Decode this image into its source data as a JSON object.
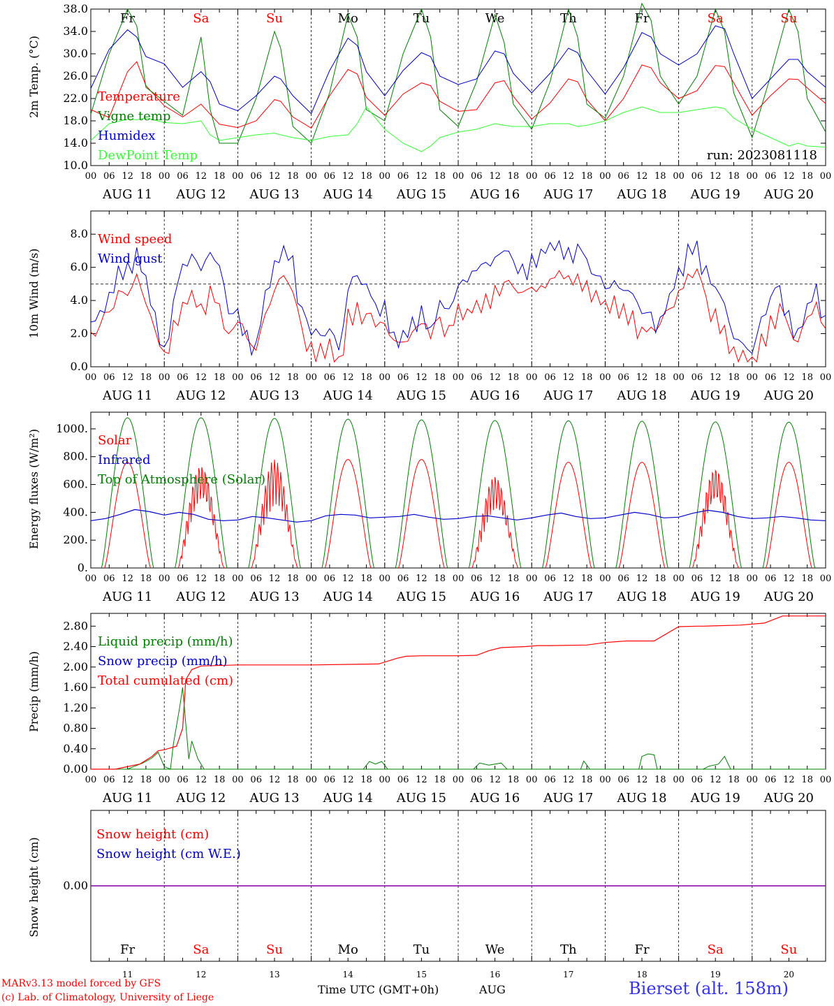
{
  "chart_data": {
    "type": "line",
    "run_label": "run: 2023081118",
    "day_labels": [
      "Fr",
      "Sa",
      "Su",
      "Mo",
      "Tu",
      "We",
      "Th",
      "Fr",
      "Sa",
      "Su"
    ],
    "weekend_days": [
      1,
      2,
      8,
      9
    ],
    "date_labels": [
      "AUG 11",
      "AUG 12",
      "AUG 13",
      "AUG 14",
      "AUG 15",
      "AUG 16",
      "AUG 17",
      "AUG 18",
      "AUG 19",
      "AUG 20"
    ],
    "day_numbers": [
      "11",
      "12",
      "13",
      "14",
      "15",
      "16",
      "17",
      "18",
      "19",
      "20"
    ],
    "hour_ticks": [
      "00",
      "06",
      "12",
      "18"
    ],
    "month_label": "AUG",
    "xlabel": "Time UTC (GMT+0h)",
    "footer_left": [
      "MARv3.13 model forced by GFS",
      "(c) Lab. of Climatology, University of Liege"
    ],
    "station": "Bierset (alt. 158m)",
    "panels": [
      {
        "id": "temperature",
        "ylabel": "2m Temp. (°C)",
        "ylim": [
          10,
          38
        ],
        "yticks": [
          "10.0",
          "14.0",
          "18.0",
          "22.0",
          "26.0",
          "30.0",
          "34.0",
          "38.0"
        ],
        "x_hours": [
          0,
          6,
          12,
          15,
          18,
          24,
          30,
          36,
          39,
          42,
          48,
          54,
          60,
          62,
          66,
          72,
          78,
          84,
          87,
          90,
          96,
          102,
          108,
          111,
          114,
          120,
          126,
          132,
          135,
          138,
          144,
          150,
          156,
          159,
          162,
          168,
          174,
          180,
          183,
          186,
          192,
          198,
          204,
          207,
          210,
          216,
          222,
          228,
          231,
          234,
          240
        ],
        "series": [
          {
            "name": "Temperature",
            "color": "#ff0000",
            "values": [
              20.0,
              18.6,
              26.8,
              28.6,
              24.3,
              20.7,
              18.7,
              21.0,
              19.2,
              17.4,
              16.8,
              18.0,
              21.8,
              21.5,
              18.7,
              16.7,
              22.5,
              27.2,
              26.4,
              22.2,
              19.0,
              22.8,
              24.8,
              24.3,
              21.5,
              19.7,
              20.0,
              24.8,
              25.2,
              22.4,
              18.3,
              21.2,
              25.5,
              25.0,
              21.8,
              18.0,
              22.0,
              28.0,
              27.5,
              24.8,
              22.0,
              23.4,
              27.9,
              27.7,
              24.8,
              19.0,
              22.5,
              25.5,
              25.4,
              23.9,
              21.1
            ]
          },
          {
            "name": "Vigne temp",
            "color": "#008000",
            "values": [
              19.2,
              30.0,
              38.0,
              35.0,
              24.0,
              21.5,
              19.0,
              33.0,
              20.0,
              14.0,
              14.0,
              22.0,
              34.0,
              31.0,
              17.0,
              14.0,
              23.0,
              37.0,
              33.0,
              20.0,
              18.0,
              30.0,
              38.0,
              33.0,
              20.0,
              17.0,
              25.0,
              37.0,
              32.0,
              21.0,
              16.5,
              25.0,
              38.0,
              33.0,
              21.0,
              18.5,
              26.0,
              39.0,
              36.0,
              26.0,
              21.0,
              26.0,
              38.0,
              34.0,
              23.0,
              15.0,
              26.0,
              38.0,
              34.0,
              22.0,
              16.0
            ]
          },
          {
            "name": "Humidex",
            "color": "#0000cc",
            "values": [
              23.8,
              30.8,
              34.3,
              33.0,
              29.5,
              28.2,
              24.0,
              26.8,
              25.0,
              21.0,
              19.8,
              22.5,
              26.0,
              25.5,
              22.5,
              19.3,
              27.0,
              32.8,
              31.5,
              26.8,
              22.5,
              27.0,
              30.2,
              29.5,
              26.0,
              24.5,
              25.5,
              30.5,
              30.0,
              26.5,
              23.0,
              26.5,
              31.0,
              30.2,
              27.0,
              22.8,
              27.5,
              33.8,
              33.0,
              30.0,
              28.0,
              30.0,
              35.0,
              34.5,
              30.0,
              22.0,
              25.5,
              29.0,
              29.0,
              26.8,
              24.0
            ]
          },
          {
            "name": "DewPoint Temp",
            "color": "#33ff33",
            "values": [
              14.5,
              17.5,
              18.3,
              18.2,
              18.5,
              17.7,
              17.5,
              18.0,
              15.5,
              14.5,
              15.0,
              15.5,
              15.8,
              15.5,
              15.0,
              14.5,
              15.2,
              15.5,
              17.5,
              20.5,
              16.5,
              14.0,
              12.5,
              13.5,
              15.0,
              16.0,
              16.5,
              17.5,
              17.2,
              17.0,
              17.0,
              17.5,
              17.5,
              17.0,
              17.2,
              18.0,
              19.5,
              20.5,
              20.0,
              19.5,
              19.5,
              20.0,
              20.5,
              20.2,
              18.5,
              16.5,
              15.0,
              13.5,
              14.0,
              13.5,
              13.3
            ]
          }
        ]
      },
      {
        "id": "wind",
        "ylabel": "10m Wind (m/s)",
        "ylim": [
          0,
          9.4
        ],
        "yticks": [
          "0.0",
          "2.0",
          "4.0",
          "6.0",
          "8.0"
        ],
        "ref_line": 5,
        "x_hours": [
          0,
          3,
          6,
          9,
          12,
          15,
          18,
          21,
          24,
          27,
          30,
          33,
          36,
          39,
          42,
          45,
          48,
          51,
          54,
          57,
          60,
          63,
          66,
          69,
          72,
          75,
          78,
          81,
          84,
          87,
          90,
          93,
          96,
          99,
          102,
          105,
          108,
          111,
          114,
          117,
          120,
          123,
          126,
          129,
          132,
          135,
          138,
          141,
          144,
          147,
          150,
          153,
          156,
          159,
          162,
          165,
          168,
          171,
          174,
          177,
          180,
          183,
          186,
          189,
          192,
          195,
          198,
          201,
          204,
          207,
          210,
          213,
          216,
          219,
          222,
          225,
          228,
          231,
          234,
          237,
          240
        ],
        "series": [
          {
            "name": "Wind speed",
            "color": "#ff0000",
            "values": [
              2.1,
              2.5,
              3.3,
              4.6,
              4.3,
              5.6,
              3.8,
              2.2,
              0.9,
              2.8,
              3.9,
              4.6,
              3.8,
              4.9,
              3.8,
              2.0,
              2.7,
              1.7,
              1.0,
              3.2,
              4.6,
              5.5,
              4.5,
              2.3,
              1.5,
              1.4,
              1.7,
              0.6,
              3.5,
              3.9,
              3.2,
              2.4,
              2.6,
              1.6,
              1.5,
              2.1,
              2.6,
              1.7,
              3.0,
              2.5,
              3.8,
              3.5,
              4.0,
              4.4,
              4.9,
              5.1,
              4.8,
              4.5,
              4.8,
              4.9,
              5.3,
              5.8,
              5.5,
              5.6,
              5.2,
              4.6,
              4.0,
              4.3,
              3.8,
              3.4,
              2.4,
              2.4,
              2.6,
              3.5,
              4.6,
              5.6,
              5.9,
              4.2,
              3.5,
              2.5,
              1.2,
              1.0,
              0.6,
              2.0,
              3.1,
              3.8,
              2.4,
              1.5,
              3.0,
              3.9,
              2.3
            ]
          },
          {
            "name": "Wind gust",
            "color": "#0000cc",
            "values": [
              2.7,
              3.4,
              4.5,
              6.1,
              6.3,
              7.2,
              5.5,
              3.3,
              1.2,
              4.0,
              6.2,
              6.8,
              5.8,
              6.9,
              6.1,
              3.2,
              3.5,
              2.2,
              1.5,
              4.6,
              6.4,
              7.3,
              6.7,
              3.6,
              1.9,
              1.9,
              2.3,
              1.0,
              4.6,
              5.5,
              5.0,
              3.8,
              4.0,
              2.1,
              2.2,
              3.0,
              3.7,
              2.4,
              4.0,
              3.5,
              4.9,
              5.1,
              5.8,
              6.3,
              6.6,
              7.0,
              6.4,
              6.2,
              6.8,
              7.1,
              7.5,
              7.6,
              7.2,
              7.4,
              6.5,
              5.5,
              4.7,
              5.2,
              4.6,
              4.4,
              3.2,
              3.3,
              3.0,
              4.4,
              6.0,
              7.4,
              7.6,
              6.1,
              4.8,
              3.8,
              1.7,
              1.4,
              0.8,
              3.0,
              4.2,
              4.9,
              3.4,
              2.3,
              3.8,
              5.0,
              3.1
            ]
          }
        ]
      },
      {
        "id": "energy",
        "ylabel": "Energy fluxes (W/m²)",
        "ylim": [
          0,
          1120
        ],
        "yticks": [
          "0.",
          "200.",
          "400.",
          "600.",
          "800.",
          "1000."
        ],
        "toa_peaks": [
          1080,
          1080,
          1075,
          1070,
          1065,
          1060,
          1058,
          1055,
          1050,
          1048
        ],
        "solar_peaks": [
          760,
          740,
          780,
          780,
          780,
          660,
          760,
          760,
          720,
          760
        ],
        "infrared": [
          340,
          355,
          385,
          420,
          405,
          380,
          400,
          385,
          350,
          340,
          345,
          370,
          360,
          345,
          330,
          340,
          375,
          385,
          380,
          360,
          365,
          370,
          385,
          365,
          350,
          355,
          370,
          375,
          360,
          345,
          360,
          380,
          395,
          370,
          355,
          360,
          380,
          400,
          385,
          360,
          365,
          395,
          415,
          400,
          370,
          355,
          360,
          370,
          360,
          345,
          340
        ],
        "series": [
          {
            "name": "Solar",
            "color": "#ff0000"
          },
          {
            "name": "Infrared",
            "color": "#0000cc"
          },
          {
            "name": "Top of Atmosphere (Solar)",
            "color": "#008000"
          }
        ]
      },
      {
        "id": "precip",
        "ylabel": "Precip (mm/h)",
        "ylim": [
          0,
          3.05
        ],
        "yticks": [
          "0.00",
          "0.40",
          "0.80",
          "1.20",
          "1.60",
          "2.00",
          "2.40",
          "2.80"
        ],
        "cumulated_x": [
          0,
          8,
          16,
          20,
          22,
          24,
          28,
          30,
          31,
          33,
          36,
          48,
          72,
          94,
          100,
          103,
          108,
          120,
          126,
          130,
          134,
          142,
          146,
          150,
          162,
          168,
          175,
          184,
          192,
          198,
          200,
          212,
          220,
          226,
          240
        ],
        "cumulated_y": [
          0,
          0,
          0.1,
          0.25,
          0.36,
          0.38,
          0.45,
          0.8,
          1.75,
          1.95,
          2.02,
          2.04,
          2.04,
          2.06,
          2.17,
          2.21,
          2.22,
          2.22,
          2.23,
          2.32,
          2.38,
          2.4,
          2.42,
          2.42,
          2.43,
          2.48,
          2.51,
          2.51,
          2.79,
          2.8,
          2.8,
          2.82,
          2.86,
          3.0,
          3.0
        ],
        "liquid": [
          [
            12,
            0.0
          ],
          [
            14,
            0.05
          ],
          [
            17,
            0.12
          ],
          [
            20,
            0.22
          ],
          [
            22,
            0.33
          ],
          [
            24,
            0.05
          ],
          [
            26,
            0.0
          ],
          [
            27,
            0.5
          ],
          [
            29,
            1.2
          ],
          [
            30,
            1.6
          ],
          [
            31,
            0.9
          ],
          [
            32,
            0.2
          ],
          [
            33,
            0.55
          ],
          [
            35,
            0.2
          ],
          [
            37,
            0.0
          ],
          [
            89,
            0.0
          ],
          [
            91,
            0.15
          ],
          [
            93,
            0.1
          ],
          [
            95,
            0.15
          ],
          [
            97,
            0.0
          ],
          [
            125,
            0.0
          ],
          [
            127,
            0.12
          ],
          [
            130,
            0.08
          ],
          [
            134,
            0.12
          ],
          [
            136,
            0.0
          ],
          [
            160,
            0.0
          ],
          [
            161,
            0.16
          ],
          [
            163,
            0.0
          ],
          [
            179,
            0.0
          ],
          [
            180,
            0.25
          ],
          [
            182,
            0.3
          ],
          [
            184,
            0.28
          ],
          [
            185,
            0.0
          ],
          [
            200,
            0.0
          ],
          [
            202,
            0.06
          ],
          [
            205,
            0.1
          ],
          [
            207,
            0.25
          ],
          [
            209,
            0.0
          ]
        ],
        "series": [
          {
            "name": "Liquid precip (mm/h)",
            "color": "#008000"
          },
          {
            "name": "Snow precip (mm/h)",
            "color": "#0000cc"
          },
          {
            "name": "Total cumulated (cm)",
            "color": "#ff0000"
          }
        ]
      },
      {
        "id": "snow",
        "ylabel": "Snow height (cm)",
        "ylim": [
          -1,
          1
        ],
        "yticks": [
          "0.00"
        ],
        "value": 0.0,
        "series": [
          {
            "name": "Snow height (cm)",
            "color": "#ff0000"
          },
          {
            "name": "Snow height (cm W.E.)",
            "color": "#0000cc"
          }
        ]
      }
    ]
  },
  "colors": {
    "weekday": "#000000",
    "weekend": "#ff0000",
    "station": "#3333ee",
    "snow_line": "#8000a0"
  }
}
